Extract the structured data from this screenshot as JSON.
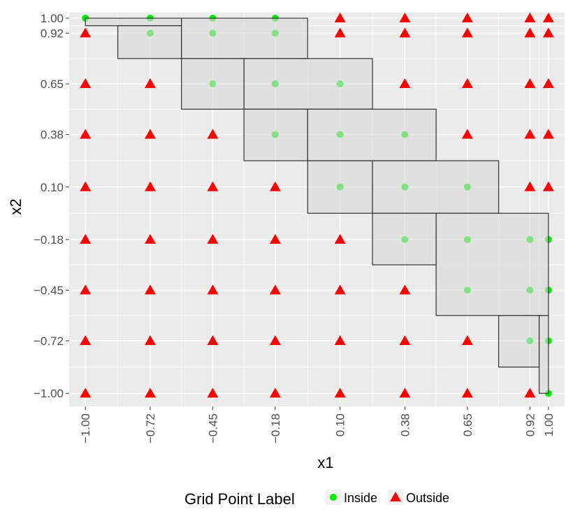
{
  "chart_data": {
    "type": "scatter",
    "xlabel": "x1",
    "ylabel": "x2",
    "xlim": [
      -1.07,
      1.07
    ],
    "ylim": [
      -1.07,
      1.03
    ],
    "x_ticks": [
      -1.0,
      -0.72,
      -0.45,
      -0.18,
      0.1,
      0.38,
      0.65,
      0.92,
      1.0
    ],
    "x_tick_labels": [
      "−1.00",
      "−0.72",
      "−0.45",
      "−0.18",
      "0.10",
      "0.38",
      "0.65",
      "0.92",
      "1.00"
    ],
    "y_ticks": [
      1.0,
      0.92,
      0.65,
      0.38,
      0.1,
      -0.18,
      -0.45,
      -0.72,
      -1.0
    ],
    "y_tick_labels": [
      "1.00",
      "0.92",
      "0.65",
      "0.38",
      "0.10",
      "−0.18",
      "−0.45",
      "−0.72",
      "−1.00"
    ],
    "minor_x": [
      -0.86,
      -0.585,
      -0.315,
      -0.04,
      0.24,
      0.515,
      0.785,
      0.96
    ],
    "minor_y": [
      0.96,
      0.785,
      0.515,
      0.24,
      -0.04,
      -0.315,
      -0.585,
      -0.86
    ],
    "grid": true,
    "legend": {
      "title": "Grid Point Label",
      "placement": "bottom",
      "entries": [
        {
          "label": "Inside",
          "shape": "circle",
          "color": "#00ee00"
        },
        {
          "label": "Outside",
          "shape": "triangle",
          "color": "#ff0000"
        }
      ]
    },
    "colors": {
      "inside": "#00ee00",
      "outside": "#ff0000",
      "panel": "#ebebeb",
      "grid": "#ffffff",
      "box_fill": "#d9d9d9",
      "box_stroke": "#333333"
    },
    "boxes": [
      {
        "x1": -1.0,
        "x2": -0.585,
        "y1": 0.96,
        "y2": 1.0
      },
      {
        "x1": -0.86,
        "x2": -0.585,
        "y1": 0.785,
        "y2": 0.96
      },
      {
        "x1": -0.585,
        "x2": -0.04,
        "y1": 0.785,
        "y2": 1.0
      },
      {
        "x1": -0.585,
        "x2": -0.315,
        "y1": 0.515,
        "y2": 0.785
      },
      {
        "x1": -0.315,
        "x2": 0.24,
        "y1": 0.515,
        "y2": 0.785
      },
      {
        "x1": -0.315,
        "x2": -0.04,
        "y1": 0.24,
        "y2": 0.515
      },
      {
        "x1": -0.04,
        "x2": 0.515,
        "y1": 0.24,
        "y2": 0.515
      },
      {
        "x1": -0.04,
        "x2": 0.24,
        "y1": -0.04,
        "y2": 0.24
      },
      {
        "x1": 0.24,
        "x2": 0.785,
        "y1": -0.04,
        "y2": 0.24
      },
      {
        "x1": 0.24,
        "x2": 0.515,
        "y1": -0.315,
        "y2": -0.04
      },
      {
        "x1": 0.515,
        "x2": 1.0,
        "y1": -0.585,
        "y2": -0.04
      },
      {
        "x1": 0.785,
        "x2": 0.96,
        "y1": -0.86,
        "y2": -0.585
      },
      {
        "x1": 0.96,
        "x2": 1.0,
        "y1": -1.0,
        "y2": -0.585
      }
    ],
    "grid_values": [
      -1.0,
      -0.72,
      -0.45,
      -0.18,
      0.1,
      0.38,
      0.65,
      0.92,
      1.0
    ],
    "points": [
      [
        -1.0,
        1.0,
        "inside"
      ],
      [
        -0.72,
        1.0,
        "inside"
      ],
      [
        -0.45,
        1.0,
        "inside"
      ],
      [
        -0.18,
        1.0,
        "inside"
      ],
      [
        0.1,
        1.0,
        "outside"
      ],
      [
        0.38,
        1.0,
        "outside"
      ],
      [
        0.65,
        1.0,
        "outside"
      ],
      [
        0.92,
        1.0,
        "outside"
      ],
      [
        1.0,
        1.0,
        "outside"
      ],
      [
        -1.0,
        0.92,
        "outside"
      ],
      [
        -0.72,
        0.92,
        "inside"
      ],
      [
        -0.45,
        0.92,
        "inside"
      ],
      [
        -0.18,
        0.92,
        "inside"
      ],
      [
        0.1,
        0.92,
        "outside"
      ],
      [
        0.38,
        0.92,
        "outside"
      ],
      [
        0.65,
        0.92,
        "outside"
      ],
      [
        0.92,
        0.92,
        "outside"
      ],
      [
        1.0,
        0.92,
        "outside"
      ],
      [
        -1.0,
        0.65,
        "outside"
      ],
      [
        -0.72,
        0.65,
        "outside"
      ],
      [
        -0.45,
        0.65,
        "inside"
      ],
      [
        -0.18,
        0.65,
        "inside"
      ],
      [
        0.1,
        0.65,
        "inside"
      ],
      [
        0.38,
        0.65,
        "outside"
      ],
      [
        0.65,
        0.65,
        "outside"
      ],
      [
        0.92,
        0.65,
        "outside"
      ],
      [
        1.0,
        0.65,
        "outside"
      ],
      [
        -1.0,
        0.38,
        "outside"
      ],
      [
        -0.72,
        0.38,
        "outside"
      ],
      [
        -0.45,
        0.38,
        "outside"
      ],
      [
        -0.18,
        0.38,
        "inside"
      ],
      [
        0.1,
        0.38,
        "inside"
      ],
      [
        0.38,
        0.38,
        "inside"
      ],
      [
        0.65,
        0.38,
        "outside"
      ],
      [
        0.92,
        0.38,
        "outside"
      ],
      [
        1.0,
        0.38,
        "outside"
      ],
      [
        -1.0,
        0.1,
        "outside"
      ],
      [
        -0.72,
        0.1,
        "outside"
      ],
      [
        -0.45,
        0.1,
        "outside"
      ],
      [
        -0.18,
        0.1,
        "outside"
      ],
      [
        0.1,
        0.1,
        "inside"
      ],
      [
        0.38,
        0.1,
        "inside"
      ],
      [
        0.65,
        0.1,
        "inside"
      ],
      [
        0.92,
        0.1,
        "outside"
      ],
      [
        1.0,
        0.1,
        "outside"
      ],
      [
        -1.0,
        -0.18,
        "outside"
      ],
      [
        -0.72,
        -0.18,
        "outside"
      ],
      [
        -0.45,
        -0.18,
        "outside"
      ],
      [
        -0.18,
        -0.18,
        "outside"
      ],
      [
        0.1,
        -0.18,
        "outside"
      ],
      [
        0.38,
        -0.18,
        "inside"
      ],
      [
        0.65,
        -0.18,
        "inside"
      ],
      [
        0.92,
        -0.18,
        "inside"
      ],
      [
        1.0,
        -0.18,
        "inside"
      ],
      [
        -1.0,
        -0.45,
        "outside"
      ],
      [
        -0.72,
        -0.45,
        "outside"
      ],
      [
        -0.45,
        -0.45,
        "outside"
      ],
      [
        -0.18,
        -0.45,
        "outside"
      ],
      [
        0.1,
        -0.45,
        "outside"
      ],
      [
        0.38,
        -0.45,
        "outside"
      ],
      [
        0.65,
        -0.45,
        "inside"
      ],
      [
        0.92,
        -0.45,
        "inside"
      ],
      [
        1.0,
        -0.45,
        "inside"
      ],
      [
        -1.0,
        -0.72,
        "outside"
      ],
      [
        -0.72,
        -0.72,
        "outside"
      ],
      [
        -0.45,
        -0.72,
        "outside"
      ],
      [
        -0.18,
        -0.72,
        "outside"
      ],
      [
        0.1,
        -0.72,
        "outside"
      ],
      [
        0.38,
        -0.72,
        "outside"
      ],
      [
        0.65,
        -0.72,
        "outside"
      ],
      [
        0.92,
        -0.72,
        "inside"
      ],
      [
        1.0,
        -0.72,
        "inside"
      ],
      [
        -1.0,
        -1.0,
        "outside"
      ],
      [
        -0.72,
        -1.0,
        "outside"
      ],
      [
        -0.45,
        -1.0,
        "outside"
      ],
      [
        -0.18,
        -1.0,
        "outside"
      ],
      [
        0.1,
        -1.0,
        "outside"
      ],
      [
        0.38,
        -1.0,
        "outside"
      ],
      [
        0.65,
        -1.0,
        "outside"
      ],
      [
        0.92,
        -1.0,
        "outside"
      ],
      [
        1.0,
        -1.0,
        "inside"
      ]
    ]
  }
}
